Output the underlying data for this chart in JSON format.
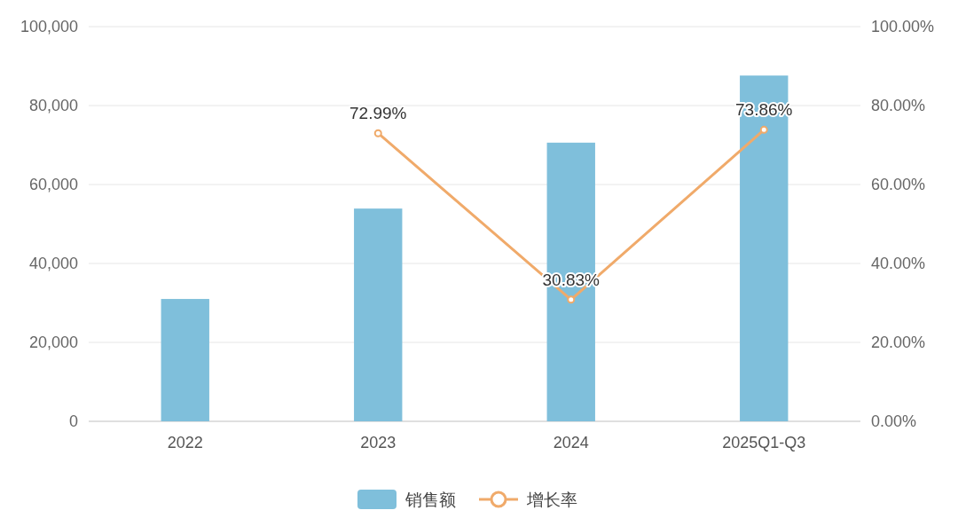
{
  "chart_data": {
    "type": "bar",
    "categories": [
      "2022",
      "2023",
      "2024",
      "2025Q1-Q3"
    ],
    "series": [
      {
        "name": "销售额",
        "color": "#7fbfdb",
        "values": [
          31000,
          53900,
          70600,
          87600
        ]
      },
      {
        "name": "增长率",
        "type": "line",
        "axis": "y2",
        "color": "#f0aa6a",
        "values": [
          null,
          72.99,
          30.83,
          73.86
        ],
        "value_labels": [
          null,
          "72.99%",
          "30.83%",
          "73.86%"
        ]
      }
    ],
    "ylim": [
      0,
      100000
    ],
    "yticks": [
      {
        "value": 0,
        "label": "0"
      },
      {
        "value": 20000,
        "label": "20,000"
      },
      {
        "value": 40000,
        "label": "40,000"
      },
      {
        "value": 60000,
        "label": "60,000"
      },
      {
        "value": 80000,
        "label": "80,000"
      },
      {
        "value": 100000,
        "label": "100,000"
      }
    ],
    "y2lim": [
      0,
      100
    ],
    "y2ticks": [
      {
        "value": 0,
        "label": "0.00%"
      },
      {
        "value": 20,
        "label": "20.00%"
      },
      {
        "value": 40,
        "label": "40.00%"
      },
      {
        "value": 60,
        "label": "60.00%"
      },
      {
        "value": 80,
        "label": "80.00%"
      },
      {
        "value": 100,
        "label": "100.00%"
      }
    ],
    "grid": "y",
    "legend": "bottom",
    "marker": "circle",
    "line_style": "solid"
  }
}
